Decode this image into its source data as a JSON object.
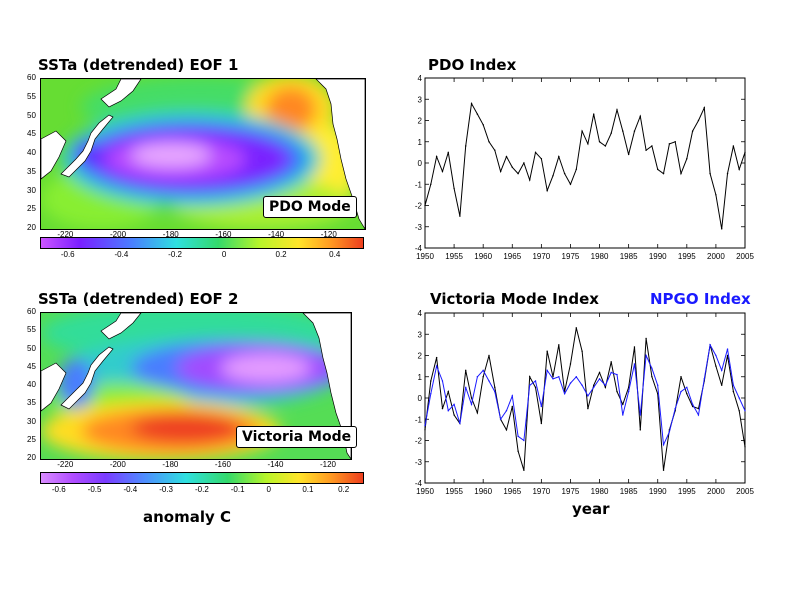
{
  "panels": {
    "eof1_title": "SSTa (detrended) EOF 1",
    "eof2_title": "SSTa (detrended) EOF 2",
    "pdo_title": "PDO Index",
    "victoria_title": "Victoria Mode Index",
    "npgo_title": "NPGO Index",
    "pdo_mode_label": "PDO Mode",
    "victoria_mode_label": "Victoria Mode",
    "anomaly_label": "anomaly C",
    "year_label": "year"
  },
  "colors": {
    "npgo_series": "#1a1aff",
    "index_line": "#000000"
  },
  "maps": {
    "lat_ticks": [
      "20",
      "25",
      "30",
      "35",
      "40",
      "45",
      "50",
      "55",
      "60"
    ],
    "lon_ticks": [
      "-220",
      "-200",
      "-180",
      "-160",
      "-140",
      "-120"
    ],
    "eof1_colorbar_ticks": [
      "-0.6",
      "-0.4",
      "-0.2",
      "0",
      "0.2",
      "0.4"
    ],
    "eof2_colorbar_ticks": [
      "-0.6",
      "-0.5",
      "-0.4",
      "-0.3",
      "-0.2",
      "-0.1",
      "0",
      "0.1",
      "0.2"
    ]
  },
  "chart_data": [
    {
      "type": "line",
      "title": "PDO Index",
      "xlabel": "",
      "ylabel": "",
      "xlim": [
        1950,
        2005
      ],
      "ylim": [
        -4,
        4
      ],
      "x_ticks": [
        "1950",
        "1955",
        "1960",
        "1965",
        "1970",
        "1975",
        "1980",
        "1985",
        "1990",
        "1995",
        "2000",
        "2005"
      ],
      "y_ticks": [
        "4",
        "3",
        "2",
        "1",
        "0",
        "-1",
        "-2",
        "-3",
        "-4"
      ],
      "series": [
        {
          "x": [
            1950,
            1951,
            1952,
            1953,
            1954,
            1955,
            1956,
            1957,
            1958,
            1959,
            1960,
            1961,
            1962,
            1963,
            1964,
            1965,
            1966,
            1967,
            1968,
            1969,
            1970,
            1971,
            1972,
            1973,
            1974,
            1975,
            1976,
            1977,
            1978,
            1979,
            1980,
            1981,
            1982,
            1983,
            1984,
            1985,
            1986,
            1987,
            1988,
            1989,
            1990,
            1991,
            1992,
            1993,
            1994,
            1995,
            1996,
            1997,
            1998,
            1999,
            2000,
            2001,
            2002,
            2003,
            2004,
            2005
          ],
          "y": [
            -2.0,
            -1.0,
            0.3,
            -0.4,
            0.5,
            -1.2,
            -2.5,
            0.8,
            2.8,
            2.3,
            1.8,
            1.0,
            0.6,
            -0.4,
            0.3,
            -0.2,
            -0.5,
            0.0,
            -0.8,
            0.5,
            0.2,
            -1.3,
            -0.6,
            0.3,
            -0.5,
            -1.0,
            -0.3,
            1.5,
            0.9,
            2.3,
            1.0,
            0.8,
            1.4,
            2.5,
            1.5,
            0.4,
            1.5,
            2.2,
            0.6,
            0.8,
            -0.3,
            -0.5,
            0.9,
            1.0,
            -0.5,
            0.2,
            1.5,
            2.0,
            2.6,
            -0.5,
            -1.5,
            -3.1,
            -0.5,
            0.8,
            -0.3,
            0.5
          ]
        }
      ]
    },
    {
      "type": "line",
      "title": "Victoria Mode Index",
      "xlabel": "year",
      "ylabel": "",
      "xlim": [
        1950,
        2005
      ],
      "ylim": [
        -4,
        4
      ],
      "legend": "top-right",
      "x_ticks": [
        "1950",
        "1955",
        "1960",
        "1965",
        "1970",
        "1975",
        "1980",
        "1985",
        "1990",
        "1995",
        "2000",
        "2005"
      ],
      "y_ticks": [
        "4",
        "3",
        "2",
        "1",
        "0",
        "-1",
        "-2",
        "-3",
        "-4"
      ],
      "series": [
        {
          "name": "Victoria Mode Index",
          "x": [
            1950,
            1951,
            1952,
            1953,
            1954,
            1955,
            1956,
            1957,
            1958,
            1959,
            1960,
            1961,
            1962,
            1963,
            1964,
            1965,
            1966,
            1967,
            1968,
            1969,
            1970,
            1971,
            1972,
            1973,
            1974,
            1975,
            1976,
            1977,
            1978,
            1979,
            1980,
            1981,
            1982,
            1983,
            1984,
            1985,
            1986,
            1987,
            1988,
            1989,
            1990,
            1991,
            1992,
            1993,
            1994,
            1995,
            1996,
            1997,
            1998,
            1999,
            2000,
            2001,
            2002,
            2003,
            2004,
            2005
          ],
          "y": [
            -1.5,
            0.8,
            1.9,
            -0.5,
            0.3,
            -0.8,
            -1.2,
            1.3,
            0.0,
            -0.7,
            1.0,
            2.0,
            0.5,
            -1.0,
            -1.5,
            -0.4,
            -2.5,
            -3.4,
            1.0,
            0.5,
            -1.2,
            2.2,
            1.0,
            2.5,
            0.3,
            1.6,
            3.3,
            2.2,
            -0.5,
            0.6,
            1.2,
            0.5,
            1.7,
            0.3,
            -0.3,
            0.5,
            2.4,
            -1.5,
            2.8,
            1.0,
            0.2,
            -3.4,
            -1.5,
            -0.6,
            1.0,
            0.2,
            -0.4,
            -0.5,
            0.8,
            2.5,
            1.5,
            0.6,
            2.0,
            0.3,
            -0.6,
            -2.3
          ]
        },
        {
          "name": "NPGO Index",
          "x": [
            1950,
            1951,
            1952,
            1953,
            1954,
            1955,
            1956,
            1957,
            1958,
            1959,
            1960,
            1961,
            1962,
            1963,
            1964,
            1965,
            1966,
            1967,
            1968,
            1969,
            1970,
            1971,
            1972,
            1973,
            1974,
            1975,
            1976,
            1977,
            1978,
            1979,
            1980,
            1981,
            1982,
            1983,
            1984,
            1985,
            1986,
            1987,
            1988,
            1989,
            1990,
            1991,
            1992,
            1993,
            1994,
            1995,
            1996,
            1997,
            1998,
            1999,
            2000,
            2001,
            2002,
            2003,
            2004,
            2005
          ],
          "y": [
            -1.3,
            0.2,
            1.5,
            0.8,
            -0.6,
            -0.3,
            -1.2,
            0.5,
            -0.3,
            1.0,
            1.3,
            0.8,
            0.3,
            -1.0,
            -0.6,
            0.1,
            -1.8,
            -2.0,
            0.6,
            0.8,
            -0.4,
            1.3,
            0.9,
            1.0,
            0.2,
            0.7,
            1.0,
            0.6,
            0.1,
            0.5,
            0.9,
            0.6,
            1.2,
            1.1,
            -0.8,
            0.3,
            1.6,
            -0.8,
            2.0,
            1.4,
            0.6,
            -2.2,
            -1.6,
            -0.5,
            0.3,
            0.5,
            -0.3,
            -0.8,
            0.9,
            2.5,
            2.0,
            1.3,
            2.3,
            0.6,
            0.0,
            -0.6
          ]
        }
      ]
    }
  ]
}
